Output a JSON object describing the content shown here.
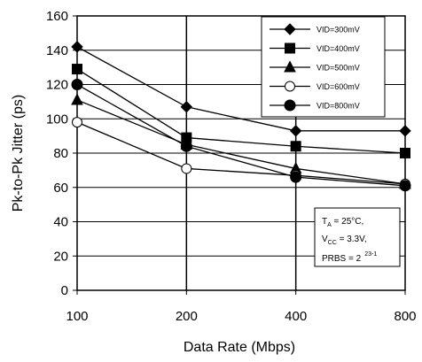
{
  "chart_data": {
    "type": "line",
    "title": "",
    "xlabel": "Data Rate (Mbps)",
    "ylabel": "Pk-to-Pk Jitter (ps)",
    "categories": [
      "100",
      "200",
      "400",
      "800"
    ],
    "ylim": [
      0,
      160
    ],
    "yticks": [
      "0",
      "20",
      "40",
      "60",
      "80",
      "100",
      "120",
      "140",
      "160"
    ],
    "grid": true,
    "legend_position": "top-right",
    "series": [
      {
        "name": "VID=300mV",
        "marker": "diamond",
        "values": [
          142,
          107,
          93,
          93
        ]
      },
      {
        "name": "VID=400mV",
        "marker": "square",
        "values": [
          129,
          89,
          84,
          80
        ]
      },
      {
        "name": "VID=500mV",
        "marker": "triangle",
        "values": [
          111,
          85,
          71,
          62
        ]
      },
      {
        "name": "VID=600mV",
        "marker": "open-circle",
        "values": [
          98,
          71,
          67,
          62
        ]
      },
      {
        "name": "VID=800mV",
        "marker": "circle",
        "values": [
          120,
          84,
          66,
          61
        ]
      }
    ],
    "annotation": {
      "line1_main": "T",
      "line1_sub": "A",
      "line1_rest": " = 25°C,",
      "line2_main": "V",
      "line2_sub": "CC",
      "line2_rest": " = 3.3V,",
      "line3_main": "PRBS = 2",
      "line3_sup": "23-1"
    }
  }
}
